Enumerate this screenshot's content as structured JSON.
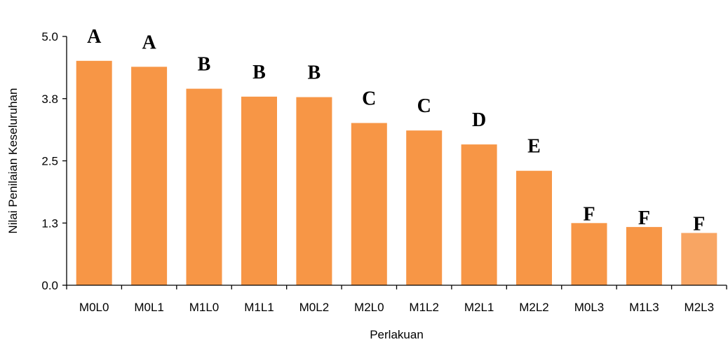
{
  "chart_data": {
    "type": "bar",
    "title": "",
    "xlabel": "Perlakuan",
    "ylabel": "Nilai Penilaian Keseluruhan",
    "ylim": [
      0,
      5
    ],
    "yticks": [
      "0.0",
      "1.3",
      "2.5",
      "3.8",
      "5.0"
    ],
    "grid": false,
    "legend": "none",
    "bar_color": "#F79646",
    "last_bar_color": "#F8A563",
    "categories": [
      "M0L0",
      "M0L1",
      "M1L0",
      "M1L1",
      "M0L2",
      "M2L0",
      "M1L2",
      "M2L1",
      "M2L2",
      "M0L3",
      "M1L3",
      "M2L3"
    ],
    "values": [
      4.51,
      4.39,
      3.95,
      3.79,
      3.78,
      3.26,
      3.11,
      2.83,
      2.3,
      1.25,
      1.17,
      1.05
    ],
    "letters": [
      "A",
      "A",
      "B",
      "B",
      "B",
      "C",
      "C",
      "D",
      "E",
      "F",
      "F",
      "F"
    ]
  }
}
